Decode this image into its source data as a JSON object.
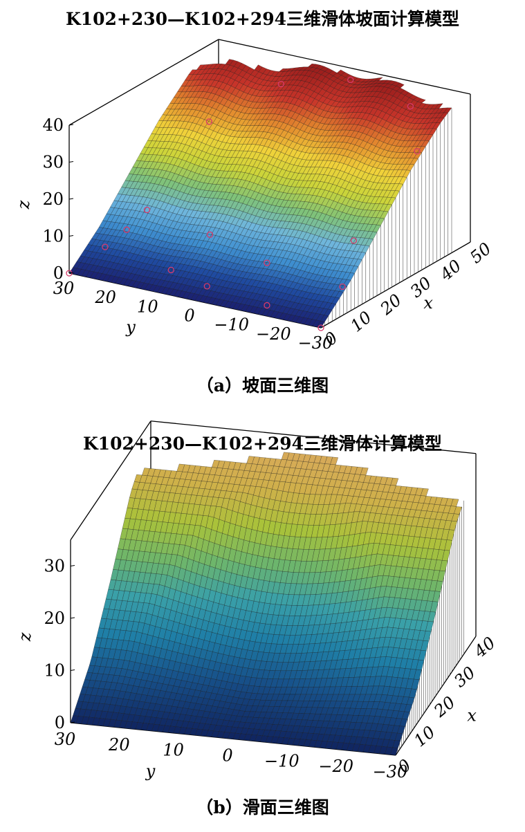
{
  "chart_data": [
    {
      "type": "surface3d",
      "panel": "a",
      "title": "K102+230—K102+294三维滑体坡面计算模型",
      "caption": "（a）坡面三维图",
      "xlabel": "x",
      "ylabel": "y",
      "zlabel": "z",
      "xlim": [
        0,
        50
      ],
      "ylim": [
        -30,
        30
      ],
      "zlim": [
        0,
        40
      ],
      "xticks": [
        0,
        10,
        20,
        30,
        40,
        50
      ],
      "yticks": [
        30,
        20,
        10,
        0,
        -10,
        -20,
        -30
      ],
      "zticks": [
        0,
        10,
        20,
        30,
        40
      ],
      "colormap": [
        "#1a1f6e",
        "#1f4aa0",
        "#3f8fd0",
        "#6fb6dc",
        "#7fc27a",
        "#c9d43a",
        "#f0d23a",
        "#e38a2e",
        "#c8352a",
        "#9e1f1d"
      ],
      "marker_color": "#d63a6a",
      "surface_profile": {
        "x": [
          0,
          10,
          20,
          30,
          40,
          45,
          50
        ],
        "z": [
          0,
          8,
          18,
          28,
          36,
          39,
          40
        ]
      },
      "survey_points": [
        {
          "x": 0,
          "y": 30,
          "z": 0
        },
        {
          "x": 0,
          "y": -30,
          "z": 0
        },
        {
          "x": 5,
          "y": 25,
          "z": 6
        },
        {
          "x": 8,
          "y": 22,
          "z": 10
        },
        {
          "x": 12,
          "y": 20,
          "z": 14
        },
        {
          "x": 12,
          "y": 5,
          "z": 11
        },
        {
          "x": 10,
          "y": -10,
          "z": 8
        },
        {
          "x": 6,
          "y": 10,
          "z": 3
        },
        {
          "x": 4,
          "y": 0,
          "z": 2
        },
        {
          "x": 3,
          "y": -15,
          "z": 1
        },
        {
          "x": 30,
          "y": 18,
          "z": 30
        },
        {
          "x": 40,
          "y": 8,
          "z": 38
        },
        {
          "x": 45,
          "y": -5,
          "z": 40
        },
        {
          "x": 44,
          "y": -20,
          "z": 37
        },
        {
          "x": 35,
          "y": -28,
          "z": 31
        },
        {
          "x": 18,
          "y": -25,
          "z": 14
        },
        {
          "x": 10,
          "y": -28,
          "z": 6
        }
      ]
    },
    {
      "type": "surface3d",
      "panel": "b",
      "title": "K102+230—K102+294三维滑体计算模型",
      "caption": "（b）滑面三维图",
      "xlabel": "x",
      "ylabel": "y",
      "zlabel": "z",
      "xlim": [
        0,
        40
      ],
      "ylim": [
        -30,
        30
      ],
      "zlim": [
        0,
        35
      ],
      "xticks": [
        0,
        10,
        20,
        30,
        40
      ],
      "yticks": [
        30,
        20,
        10,
        0,
        -10,
        -20,
        -30
      ],
      "zticks": [
        0,
        10,
        20,
        30
      ],
      "colormap": [
        "#10245f",
        "#17518a",
        "#1f7fa7",
        "#3aa0a8",
        "#6fb66a",
        "#a9c23a",
        "#cfb04a",
        "#d9a85e"
      ],
      "surface_profile": {
        "x": [
          0,
          10,
          20,
          30,
          40
        ],
        "z": [
          0,
          6,
          16,
          27,
          33
        ]
      }
    }
  ]
}
